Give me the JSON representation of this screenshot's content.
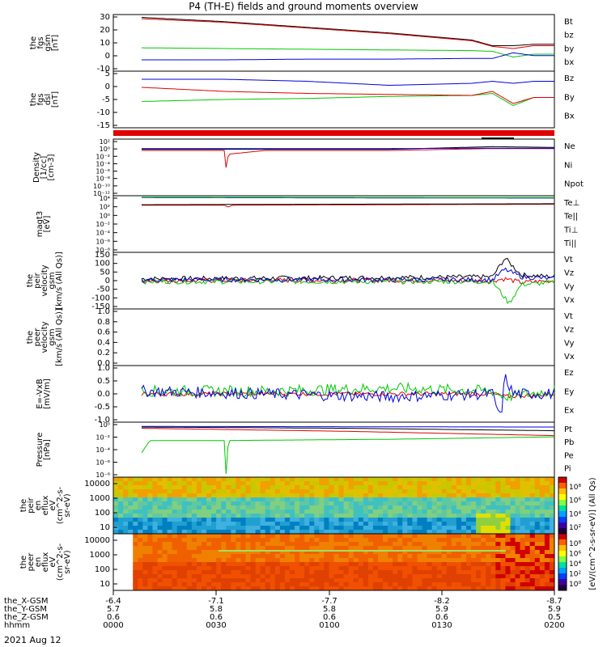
{
  "title": "P4 (TH-E) fields and ground moments overview",
  "date": "2021 Aug 12",
  "colors": {
    "black": "#000000",
    "red": "#e00000",
    "green": "#00c800",
    "blue": "#0000dd",
    "frame": "#000000"
  },
  "xaxis": {
    "time_labels": [
      "0000",
      "0030",
      "0100",
      "0130",
      "0200"
    ],
    "rows": [
      {
        "label": "the_X-GSM",
        "values": [
          "-6.4",
          "-7.1",
          "-7.7",
          "-8.2",
          "-8.7"
        ]
      },
      {
        "label": "the_Y-GSM",
        "values": [
          "5.7",
          "5.8",
          "5.8",
          "5.9",
          "5.9"
        ]
      },
      {
        "label": "the_Z-GSM",
        "values": [
          "0.6",
          "0.6",
          "0.6",
          "0.6",
          "0.5"
        ]
      },
      {
        "label": "hhmm",
        "values": [
          "0000",
          "0030",
          "0100",
          "0130",
          "0200"
        ]
      }
    ]
  },
  "chart_data": [
    {
      "type": "line",
      "ylabel": [
        "the",
        "fgs",
        "gsm",
        "[nT]"
      ],
      "ylim": [
        -10,
        30
      ],
      "yticks": [
        "30",
        "20",
        "10",
        "0",
        "-10"
      ],
      "series": [
        {
          "name": "Bt",
          "color": "#000000",
          "x": [
            0,
            0.2,
            0.4,
            0.6,
            0.8,
            0.85,
            0.9,
            0.95,
            1.0
          ],
          "values": [
            28,
            25,
            21,
            17,
            12,
            8,
            8,
            9,
            9
          ]
        },
        {
          "name": "bz",
          "color": "#e00000",
          "x": [
            0,
            0.2,
            0.4,
            0.6,
            0.8,
            0.85,
            0.9,
            0.95,
            1.0
          ],
          "values": [
            27,
            24.5,
            20.5,
            16.5,
            11.5,
            7.5,
            6,
            8,
            8
          ]
        },
        {
          "name": "by",
          "color": "#00c800",
          "x": [
            0,
            0.2,
            0.4,
            0.6,
            0.8,
            0.85,
            0.9,
            0.95,
            1.0
          ],
          "values": [
            6.5,
            6,
            5.5,
            5,
            4.5,
            4,
            0,
            2,
            2
          ]
        },
        {
          "name": "bx",
          "color": "#0000dd",
          "x": [
            0,
            0.2,
            0.4,
            0.6,
            0.8,
            0.85,
            0.9,
            0.95,
            1.0
          ],
          "values": [
            -2,
            -2,
            -1.5,
            -1.5,
            -1,
            -1,
            3,
            1,
            1
          ]
        }
      ]
    },
    {
      "type": "line",
      "ylabel": [
        "the",
        "fgs",
        "dsl",
        "[nT]"
      ],
      "ylim": [
        -18,
        10
      ],
      "yticks": [
        "5",
        "0",
        "-5",
        "-10",
        "-15"
      ],
      "series": [
        {
          "name": "Bz",
          "color": "#0000dd",
          "x": [
            0,
            0.2,
            0.4,
            0.6,
            0.8,
            0.85,
            0.9,
            0.95,
            1.0
          ],
          "values": [
            6,
            6,
            5,
            3,
            4,
            5,
            4,
            5,
            5
          ]
        },
        {
          "name": "By",
          "color": "#00c800",
          "x": [
            0,
            0.2,
            0.4,
            0.6,
            0.8,
            0.85,
            0.9,
            0.95,
            1.0
          ],
          "values": [
            -5,
            -4,
            -3.5,
            -2.5,
            -2,
            -1,
            -7,
            -3,
            -3
          ]
        },
        {
          "name": "Bx",
          "color": "#e00000",
          "x": [
            0,
            0.2,
            0.4,
            0.6,
            0.8,
            0.85,
            0.9,
            0.95,
            1.0
          ],
          "values": [
            2,
            0,
            -1,
            -1.5,
            -2,
            0,
            -6,
            -3,
            -3
          ]
        }
      ]
    },
    {
      "type": "line",
      "ylabel": [
        "Density",
        "[1/cc]",
        "[cm-3]"
      ],
      "ylim": [
        -12,
        3
      ],
      "log": true,
      "yticks": [
        "10²",
        "10⁰",
        "10⁻²",
        "10⁻⁴",
        "10⁻⁶",
        "10⁻⁸",
        "10⁻¹⁰",
        "10⁻¹²"
      ],
      "series": [
        {
          "name": "Ne",
          "color": "#e00000",
          "x": [
            0,
            0.2,
            0.205,
            0.21,
            0.3,
            0.6,
            0.85,
            1.0
          ],
          "values": [
            0,
            0,
            -5,
            -1,
            0,
            0,
            0.5,
            0.5
          ]
        },
        {
          "name": "Ni",
          "color": "#000000",
          "x": [
            0,
            0.6,
            0.85,
            1.0
          ],
          "values": [
            0.3,
            0.3,
            1,
            0.8
          ]
        },
        {
          "name": "Npot",
          "color": "#0000dd",
          "x": [
            0,
            0.6,
            0.85,
            1.0
          ],
          "values": [
            0.5,
            0.5,
            0.6,
            0.6
          ]
        }
      ]
    },
    {
      "type": "line",
      "ylabel": [
        "magt3",
        "[eV]"
      ],
      "ylim": [
        -8,
        4
      ],
      "log": true,
      "yticks": [
        "10⁴",
        "10²",
        "10⁰",
        "10⁻²",
        "10⁻⁴",
        "10⁻⁶",
        "10⁻⁸"
      ],
      "series": [
        {
          "name": "Te⊥",
          "color": "#e00000",
          "x": [
            0,
            0.2,
            0.21,
            0.22,
            1.0
          ],
          "values": [
            2,
            2,
            1.6,
            2,
            2.2
          ]
        },
        {
          "name": "Te||",
          "color": "#000000",
          "x": [
            0,
            1.0
          ],
          "values": [
            2.1,
            2.3
          ]
        },
        {
          "name": "Ti⊥",
          "color": "#0000dd",
          "x": [
            0,
            1.0
          ],
          "values": [
            3.6,
            3.5
          ]
        },
        {
          "name": "Ti||",
          "color": "#00c800",
          "x": [
            0,
            1.0
          ],
          "values": [
            3.7,
            3.6
          ]
        }
      ]
    },
    {
      "type": "line",
      "ylabel": [
        "the",
        "peir",
        "velocity",
        "gsm",
        "[km/s (All Qs)]"
      ],
      "ylim": [
        -150,
        150
      ],
      "yticks": [
        "150",
        "100",
        "50",
        "0",
        "-50",
        "-100",
        "-150"
      ],
      "series": [
        {
          "name": "Vt",
          "color": "#000000",
          "x": [
            0,
            0.5,
            0.85,
            0.88,
            0.92,
            1.0
          ],
          "values": [
            10,
            15,
            20,
            120,
            30,
            20
          ]
        },
        {
          "name": "Vz",
          "color": "#e00000",
          "x": [
            0,
            0.5,
            0.85,
            0.88,
            0.92,
            1.0
          ],
          "values": [
            0,
            2,
            0,
            10,
            -10,
            0
          ]
        },
        {
          "name": "Vy",
          "color": "#00c800",
          "x": [
            0,
            0.5,
            0.85,
            0.89,
            0.92,
            1.0
          ],
          "values": [
            -5,
            -5,
            -5,
            -120,
            -20,
            -10
          ]
        },
        {
          "name": "Vx",
          "color": "#0000dd",
          "x": [
            0,
            0.5,
            0.85,
            0.88,
            0.92,
            1.0
          ],
          "values": [
            5,
            5,
            5,
            60,
            20,
            10
          ]
        }
      ]
    },
    {
      "type": "line",
      "ylabel": [
        "the",
        "peer",
        "velocity",
        "gsm",
        "[km/s (All Qs)]"
      ],
      "ylim": [
        0,
        1
      ],
      "yticks": [
        "1.0",
        "0.8",
        "0.6",
        "0.4",
        "0.2",
        "0.0"
      ],
      "series": [
        {
          "name": "Vt",
          "color": "#000000",
          "x": [],
          "values": []
        },
        {
          "name": "Vz",
          "color": "#e00000",
          "x": [],
          "values": []
        },
        {
          "name": "Vy",
          "color": "#00c800",
          "x": [],
          "values": []
        },
        {
          "name": "Vx",
          "color": "#0000dd",
          "x": [],
          "values": []
        }
      ]
    },
    {
      "type": "line",
      "ylabel": [
        "E=-VxB",
        "[mV/m]"
      ],
      "ylim": [
        -1,
        1
      ],
      "yticks": [
        "1.0",
        "0.5",
        "0.0",
        "-0.5",
        "-1.0"
      ],
      "series": [
        {
          "name": "Ez",
          "color": "#e00000",
          "x": [
            0,
            0.5,
            0.85,
            0.88,
            1.0
          ],
          "values": [
            0,
            0,
            0,
            -0.1,
            0
          ]
        },
        {
          "name": "Ey",
          "color": "#00c800",
          "x": [
            0,
            0.3,
            0.6,
            0.85,
            0.88,
            1.0
          ],
          "values": [
            0.1,
            0.1,
            0.2,
            0.1,
            -0.1,
            0.1
          ]
        },
        {
          "name": "Ex",
          "color": "#0000dd",
          "x": [
            0,
            0.3,
            0.6,
            0.85,
            0.87,
            0.88,
            0.9,
            1.0
          ],
          "values": [
            0.1,
            0,
            -0.1,
            0,
            -0.9,
            0.6,
            0,
            0
          ]
        }
      ]
    },
    {
      "type": "line",
      "ylabel": [
        "Pressure",
        "[nPa]"
      ],
      "ylim": [
        -8,
        1
      ],
      "log": true,
      "yticks": [
        "10⁰",
        "10⁻²",
        "10⁻⁴",
        "10⁻⁶",
        "10⁻⁸"
      ],
      "series": [
        {
          "name": "Pt",
          "color": "#000000",
          "x": [
            0,
            0.5,
            1.0
          ],
          "values": [
            0.2,
            0,
            -0.4
          ]
        },
        {
          "name": "Pb",
          "color": "#e00000",
          "x": [
            0,
            0.5,
            1.0
          ],
          "values": [
            0,
            -0.5,
            -1.2
          ]
        },
        {
          "name": "Pe",
          "color": "#00c800",
          "x": [
            0,
            0.02,
            0.2,
            0.205,
            0.21,
            0.6,
            0.9,
            1.0
          ],
          "values": [
            -4,
            -2,
            -2,
            -8,
            -2,
            -1.8,
            -1.5,
            -1.4
          ]
        },
        {
          "name": "Pi",
          "color": "#0000dd",
          "x": [
            0,
            1.0
          ],
          "values": [
            0.3,
            0.2
          ]
        }
      ]
    },
    {
      "type": "heatmap",
      "ylabel": [
        "the",
        "peir",
        "en",
        "eflux",
        "eV",
        "(cm^2-s-",
        "sr-eV)"
      ],
      "yticks": [
        "10000",
        "1000",
        "100",
        "10"
      ],
      "colorbar": {
        "label": "[eV/(cm^2-s-sr-eV)] (All Qs)",
        "ticks": [
          "10⁸",
          "10⁶",
          "10⁴",
          "10²"
        ]
      }
    },
    {
      "type": "heatmap",
      "ylabel": [
        "the",
        "peer",
        "en",
        "eflux",
        "eV",
        "(cm^2-s-",
        "sr-eV)"
      ],
      "yticks": [
        "10000",
        "1000",
        "100",
        "10"
      ],
      "colorbar": {
        "label": "[eV/(cm^2-s-sr-eV)]",
        "ticks": [
          "10⁸",
          "10⁶",
          "10⁴",
          "10²",
          "10⁰"
        ]
      }
    }
  ]
}
